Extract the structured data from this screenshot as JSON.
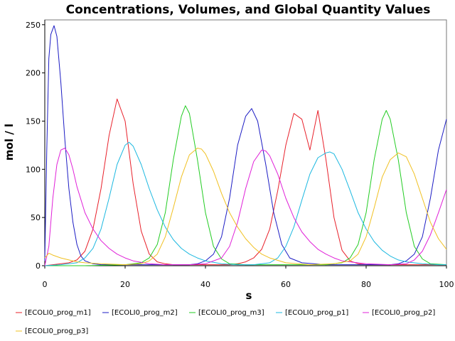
{
  "chart_data": {
    "type": "line",
    "title": "Concentrations, Volumes, and Global Quantity Values",
    "xlabel": "s",
    "ylabel": "mol / l",
    "xlim": [
      0,
      100
    ],
    "ylim": [
      0,
      255
    ],
    "xticks": [
      "0",
      "20",
      "40",
      "60",
      "80",
      "100"
    ],
    "yticks": [
      "0",
      "50",
      "100",
      "150",
      "200",
      "250"
    ],
    "grid": false,
    "legend_position": "bottom",
    "series": [
      {
        "name": "[ECOLI0_prog_m1]",
        "color": "#e8202a",
        "x": [
          0,
          2,
          4,
          6,
          8,
          10,
          12,
          14,
          16,
          18,
          20,
          22,
          24,
          26,
          28,
          30,
          32,
          34,
          36,
          38,
          40,
          42,
          44,
          46,
          48,
          50,
          52,
          54,
          56,
          58,
          60,
          62,
          64,
          66,
          68,
          70,
          72,
          74,
          76,
          78,
          80,
          82,
          84,
          86,
          88,
          90,
          92,
          94,
          96,
          98,
          100
        ],
        "values": [
          0,
          1,
          2,
          3,
          6,
          15,
          38,
          80,
          135,
          173,
          150,
          85,
          36,
          12,
          4,
          2,
          1,
          1,
          1,
          1,
          1,
          1,
          1,
          1,
          2,
          4,
          8,
          17,
          38,
          78,
          125,
          158,
          152,
          120,
          161,
          110,
          50,
          16,
          5,
          2,
          1,
          1,
          1,
          1,
          1,
          1,
          1,
          1,
          1,
          1,
          1
        ]
      },
      {
        "name": "[ECOLI0_prog_m2]",
        "color": "#1c1cc4",
        "x": [
          0,
          0.5,
          1,
          1.5,
          2.3,
          3,
          4,
          5,
          6,
          7,
          8,
          9,
          10,
          12,
          14,
          16,
          20,
          30,
          36,
          38,
          40,
          42,
          44,
          46,
          48,
          50,
          51.5,
          53,
          55,
          57,
          59,
          61,
          64,
          70,
          80,
          86,
          88,
          90,
          92,
          94,
          96,
          98,
          100
        ],
        "values": [
          5,
          120,
          215,
          240,
          249,
          238,
          190,
          130,
          80,
          45,
          22,
          10,
          5,
          2,
          1,
          1,
          1,
          1,
          1,
          2,
          5,
          12,
          30,
          70,
          125,
          155,
          163,
          150,
          105,
          55,
          22,
          8,
          3,
          1,
          1,
          1,
          2,
          5,
          12,
          30,
          70,
          120,
          152
        ]
      },
      {
        "name": "[ECOLI0_prog_m3]",
        "color": "#22cc22",
        "x": [
          0,
          10,
          20,
          24,
          26,
          28,
          30,
          32,
          34,
          35,
          36,
          38,
          40,
          42,
          44,
          46,
          50,
          60,
          70,
          74,
          76,
          78,
          80,
          82,
          84,
          85,
          86,
          88,
          90,
          92,
          94,
          96,
          100
        ],
        "values": [
          0,
          0,
          1,
          3,
          8,
          22,
          55,
          110,
          155,
          166,
          158,
          110,
          55,
          20,
          7,
          2,
          1,
          1,
          1,
          3,
          8,
          22,
          55,
          110,
          152,
          161,
          152,
          110,
          55,
          20,
          7,
          2,
          1
        ]
      },
      {
        "name": "[ECOLI0_prog_p1]",
        "color": "#1cb8e0",
        "x": [
          0,
          4,
          8,
          10,
          12,
          14,
          16,
          18,
          20,
          21,
          22,
          24,
          26,
          28,
          30,
          32,
          34,
          36,
          38,
          40,
          44,
          48,
          52,
          56,
          58,
          60,
          62,
          64,
          66,
          68,
          70,
          71,
          72,
          74,
          76,
          78,
          80,
          82,
          84,
          86,
          88,
          90,
          94,
          98,
          100
        ],
        "values": [
          0,
          1,
          3,
          8,
          18,
          38,
          70,
          105,
          125,
          128,
          124,
          105,
          80,
          58,
          40,
          27,
          18,
          12,
          8,
          5,
          2,
          1,
          1,
          3,
          8,
          20,
          40,
          68,
          95,
          112,
          117,
          118,
          116,
          100,
          78,
          55,
          38,
          25,
          16,
          10,
          6,
          4,
          2,
          1,
          1
        ]
      },
      {
        "name": "[ECOLI0_prog_p2]",
        "color": "#e020d8",
        "x": [
          0,
          1,
          2,
          3,
          4,
          5,
          6,
          7,
          8,
          10,
          12,
          14,
          16,
          18,
          20,
          22,
          26,
          30,
          36,
          40,
          44,
          46,
          48,
          50,
          52,
          54,
          55,
          56,
          58,
          60,
          62,
          64,
          66,
          68,
          70,
          72,
          74,
          80,
          86,
          90,
          92,
          94,
          96,
          98,
          100
        ],
        "values": [
          0,
          20,
          70,
          105,
          120,
          122,
          115,
          100,
          82,
          55,
          38,
          26,
          18,
          12,
          8,
          5,
          2,
          1,
          1,
          2,
          8,
          20,
          45,
          80,
          108,
          120,
          119,
          114,
          95,
          70,
          50,
          35,
          25,
          17,
          12,
          8,
          5,
          2,
          1,
          2,
          6,
          15,
          32,
          55,
          79
        ]
      },
      {
        "name": "[ECOLI0_prog_p3]",
        "color": "#f0c020",
        "x": [
          0,
          1,
          2,
          4,
          6,
          8,
          10,
          14,
          20,
          24,
          26,
          28,
          30,
          32,
          34,
          36,
          38,
          39,
          40,
          42,
          44,
          46,
          48,
          50,
          52,
          54,
          56,
          60,
          66,
          72,
          76,
          78,
          80,
          82,
          84,
          86,
          88,
          90,
          92,
          94,
          96,
          98,
          100
        ],
        "values": [
          8,
          13,
          11,
          8,
          6,
          4,
          3,
          2,
          1,
          2,
          5,
          12,
          30,
          60,
          92,
          115,
          122,
          121,
          116,
          98,
          75,
          55,
          40,
          28,
          19,
          12,
          8,
          3,
          1,
          2,
          5,
          12,
          30,
          60,
          92,
          110,
          117,
          113,
          95,
          70,
          45,
          28,
          17
        ]
      }
    ]
  }
}
